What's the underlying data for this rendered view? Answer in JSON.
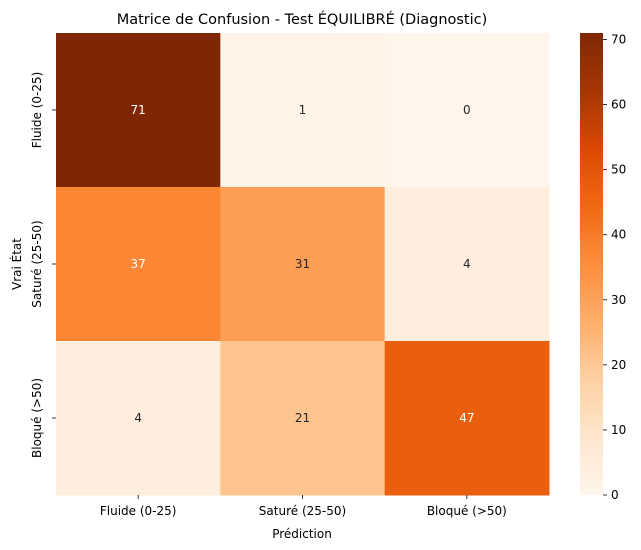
{
  "chart_data": {
    "type": "heatmap",
    "title": "Matrice de Confusion - Test ÉQUILIBRÉ (Diagnostic)",
    "xlabel": "Prédiction",
    "ylabel": "Vrai État",
    "x_categories": [
      "Fluide (0-25)",
      "Saturé (25-50)",
      "Bloqué (>50)"
    ],
    "y_categories": [
      "Fluide (0-25)",
      "Saturé (25-50)",
      "Bloqué (>50)"
    ],
    "values": [
      [
        71,
        1,
        0
      ],
      [
        37,
        31,
        4
      ],
      [
        4,
        21,
        47
      ]
    ],
    "colorbar": {
      "min": 0,
      "max": 71,
      "ticks": [
        0,
        10,
        20,
        30,
        40,
        50,
        60,
        70
      ]
    },
    "colormap": "Oranges",
    "colors": {
      "low": "#fff5eb",
      "high": "#7f2704",
      "dark_text": "#262626",
      "light_text": "#ffffff"
    }
  }
}
